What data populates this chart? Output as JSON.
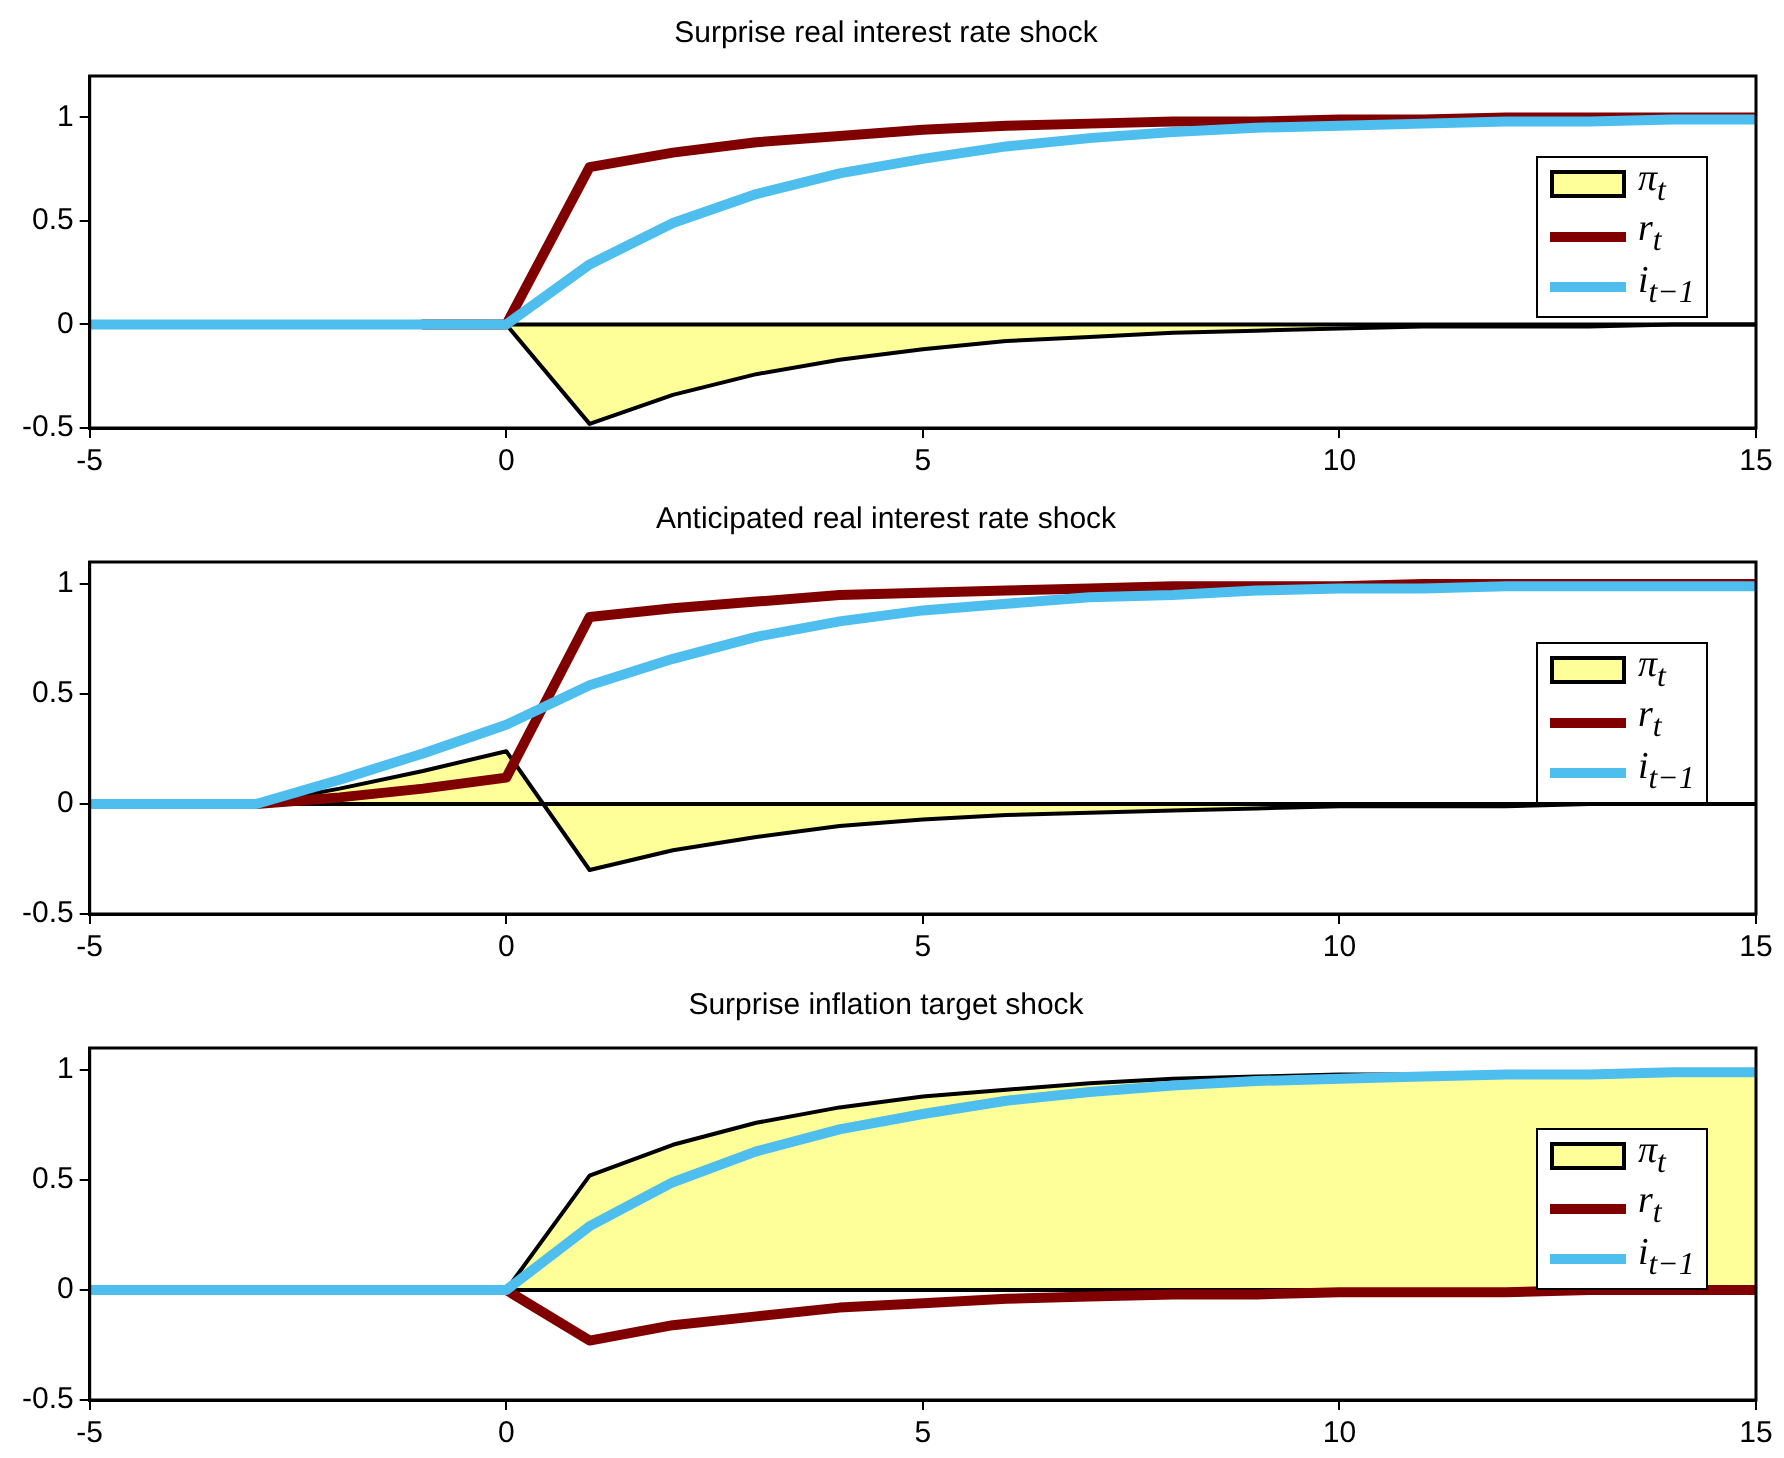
{
  "chart_data": [
    {
      "type": "line",
      "title": "Surprise real interest rate shock",
      "x": [
        -5,
        -4,
        -3,
        -2,
        -1,
        0,
        1,
        2,
        3,
        4,
        5,
        6,
        7,
        8,
        9,
        10,
        11,
        12,
        13,
        14,
        15
      ],
      "xlim": [
        -5,
        15
      ],
      "xticks": [
        -5,
        0,
        5,
        10,
        15
      ],
      "ylim": [
        -0.5,
        1.2
      ],
      "yticks": [
        -0.5,
        0,
        0.5,
        1
      ],
      "grid": false,
      "legend": "right",
      "ref_lines": [
        {
          "axis": "y",
          "value": 0,
          "color": "#000000"
        }
      ],
      "series": [
        {
          "name": "π$_{t}$",
          "type": "area",
          "color": "#ffff99",
          "values": [
            0,
            0,
            0,
            0,
            0,
            0,
            -0.48,
            -0.34,
            -0.24,
            -0.17,
            -0.12,
            -0.08,
            -0.06,
            -0.04,
            -0.03,
            -0.02,
            -0.01,
            -0.01,
            -0.01,
            0,
            0
          ]
        },
        {
          "name": "r$_{t}$",
          "type": "line",
          "color": "#800000",
          "values": [
            null,
            null,
            null,
            null,
            0,
            0,
            0.76,
            0.83,
            0.88,
            0.91,
            0.94,
            0.96,
            0.97,
            0.98,
            0.98,
            0.99,
            0.99,
            1,
            1,
            1,
            1
          ]
        },
        {
          "name": "i$_{t−1}$",
          "type": "line",
          "color": "#4dbeee",
          "values": [
            0,
            0,
            0,
            0,
            0,
            0,
            0.29,
            0.49,
            0.63,
            0.73,
            0.8,
            0.86,
            0.9,
            0.93,
            0.95,
            0.96,
            0.97,
            0.98,
            0.98,
            0.99,
            0.99
          ]
        }
      ]
    },
    {
      "type": "line",
      "title": "Anticipated real interest rate shock",
      "x": [
        -5,
        -4,
        -3,
        -2,
        -1,
        0,
        1,
        2,
        3,
        4,
        5,
        6,
        7,
        8,
        9,
        10,
        11,
        12,
        13,
        14,
        15
      ],
      "xlim": [
        -5,
        15
      ],
      "xticks": [
        -5,
        0,
        5,
        10,
        15
      ],
      "ylim": [
        -0.5,
        1.1
      ],
      "yticks": [
        -0.5,
        0,
        0.5,
        1
      ],
      "grid": false,
      "legend": "right",
      "ref_lines": [
        {
          "axis": "y",
          "value": 0,
          "color": "#000000"
        }
      ],
      "series": [
        {
          "name": "π$_{t}$",
          "type": "area",
          "color": "#ffff99",
          "values": [
            0,
            0,
            0,
            0.07,
            0.15,
            0.24,
            -0.3,
            -0.21,
            -0.15,
            -0.1,
            -0.07,
            -0.05,
            -0.04,
            -0.03,
            -0.02,
            -0.01,
            -0.01,
            -0.01,
            0,
            0,
            0
          ]
        },
        {
          "name": "r$_{t}$",
          "type": "line",
          "color": "#800000",
          "values": [
            0,
            0,
            0,
            0.03,
            0.07,
            0.12,
            0.85,
            0.89,
            0.92,
            0.95,
            0.96,
            0.97,
            0.98,
            0.99,
            0.99,
            0.99,
            1,
            1,
            1,
            1,
            1
          ]
        },
        {
          "name": "i$_{t−1}$",
          "type": "line",
          "color": "#4dbeee",
          "values": [
            0,
            0,
            0,
            0.11,
            0.23,
            0.36,
            0.54,
            0.66,
            0.76,
            0.83,
            0.88,
            0.91,
            0.94,
            0.95,
            0.97,
            0.98,
            0.98,
            0.99,
            0.99,
            0.99,
            0.99
          ]
        }
      ]
    },
    {
      "type": "line",
      "title": "Surprise inflation target shock",
      "x": [
        -5,
        -4,
        -3,
        -2,
        -1,
        0,
        1,
        2,
        3,
        4,
        5,
        6,
        7,
        8,
        9,
        10,
        11,
        12,
        13,
        14,
        15
      ],
      "xlim": [
        -5,
        15
      ],
      "xticks": [
        -5,
        0,
        5,
        10,
        15
      ],
      "ylim": [
        -0.5,
        1.1
      ],
      "yticks": [
        -0.5,
        0,
        0.5,
        1
      ],
      "grid": false,
      "legend": "right",
      "ref_lines": [
        {
          "axis": "y",
          "value": 0,
          "color": "#000000"
        }
      ],
      "series": [
        {
          "name": "π$_{t}$",
          "type": "area",
          "color": "#ffff99",
          "values": [
            0,
            0,
            0,
            0,
            0,
            0,
            0.52,
            0.66,
            0.76,
            0.83,
            0.88,
            0.91,
            0.94,
            0.96,
            0.97,
            0.98,
            0.98,
            0.99,
            0.99,
            0.99,
            1
          ]
        },
        {
          "name": "r$_{t}$",
          "type": "line",
          "color": "#800000",
          "values": [
            null,
            null,
            null,
            null,
            0,
            0,
            -0.23,
            -0.16,
            -0.12,
            -0.08,
            -0.06,
            -0.04,
            -0.03,
            -0.02,
            -0.02,
            -0.01,
            -0.01,
            -0.01,
            0,
            0,
            0
          ]
        },
        {
          "name": "i$_{t−1}$",
          "type": "line",
          "color": "#4dbeee",
          "values": [
            0,
            0,
            0,
            0,
            0,
            0,
            0.29,
            0.49,
            0.63,
            0.73,
            0.8,
            0.86,
            0.9,
            0.93,
            0.95,
            0.96,
            0.97,
            0.98,
            0.98,
            0.99,
            0.99
          ]
        }
      ]
    }
  ]
}
